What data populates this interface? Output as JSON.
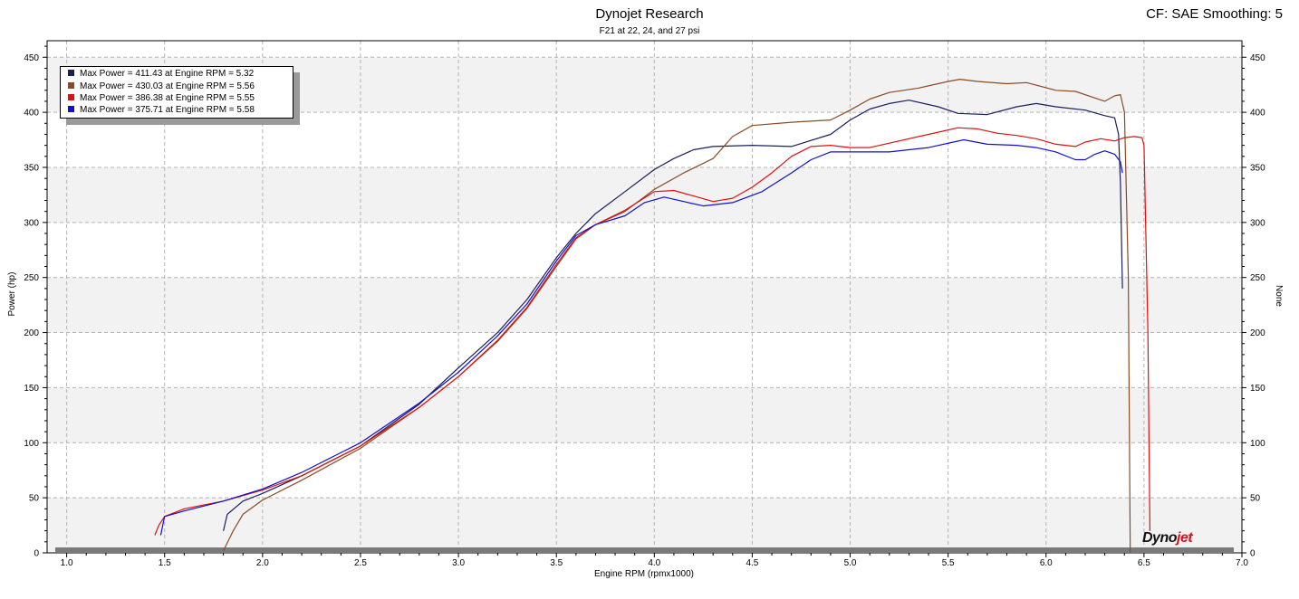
{
  "header": {
    "title": "Dynojet Research",
    "subtitle": "F21 at 22, 24, and 27 psi",
    "corner": "CF: SAE Smoothing: 5"
  },
  "logo": {
    "text": "Dynojet"
  },
  "legend": {
    "items": [
      {
        "label": "Max Power = 411.43 at Engine RPM = 5.32",
        "color": "#1a1f5c"
      },
      {
        "label": "Max Power = 430.03 at Engine RPM = 5.56",
        "color": "#8b4a24"
      },
      {
        "label": "Max Power = 386.38 at Engine RPM = 5.55",
        "color": "#e01010"
      },
      {
        "label": "Max Power = 375.71 at Engine RPM = 5.58",
        "color": "#1010d0"
      }
    ]
  },
  "chart_data": {
    "type": "line",
    "title": "Dynojet Research",
    "subtitle": "F21 at 22, 24, and 27 psi",
    "xlabel": "Engine RPM (rpmx1000)",
    "ylabel": "Power (hp)",
    "y2label": "None",
    "xlim": [
      0.9,
      7.0
    ],
    "ylim": [
      0,
      465
    ],
    "xticks": [
      "1.0",
      "1.5",
      "2.0",
      "2.5",
      "3.0",
      "3.5",
      "4.0",
      "4.5",
      "5.0",
      "5.5",
      "6.0",
      "6.5",
      "7.0"
    ],
    "yticks": [
      "0",
      "50",
      "100",
      "150",
      "200",
      "250",
      "300",
      "350",
      "400",
      "450"
    ],
    "grid": true,
    "legend_position": "top-left",
    "series": [
      {
        "color": "#1a1f5c",
        "points": [
          [
            1.8,
            20
          ],
          [
            1.82,
            35
          ],
          [
            1.9,
            47
          ],
          [
            2.0,
            54
          ],
          [
            2.2,
            70
          ],
          [
            2.5,
            97
          ],
          [
            2.8,
            135
          ],
          [
            3.0,
            168
          ],
          [
            3.2,
            200
          ],
          [
            3.35,
            230
          ],
          [
            3.5,
            268
          ],
          [
            3.6,
            290
          ],
          [
            3.7,
            308
          ],
          [
            3.85,
            328
          ],
          [
            4.0,
            348
          ],
          [
            4.1,
            358
          ],
          [
            4.2,
            366
          ],
          [
            4.3,
            369
          ],
          [
            4.5,
            370
          ],
          [
            4.7,
            369
          ],
          [
            4.9,
            380
          ],
          [
            5.0,
            393
          ],
          [
            5.1,
            403
          ],
          [
            5.2,
            408
          ],
          [
            5.3,
            411
          ],
          [
            5.45,
            405
          ],
          [
            5.55,
            399
          ],
          [
            5.7,
            398
          ],
          [
            5.85,
            405
          ],
          [
            5.95,
            408
          ],
          [
            6.05,
            405
          ],
          [
            6.2,
            402
          ],
          [
            6.3,
            397
          ],
          [
            6.35,
            395
          ],
          [
            6.37,
            380
          ],
          [
            6.38,
            335
          ],
          [
            6.39,
            240
          ]
        ]
      },
      {
        "color": "#8b4a24",
        "points": [
          [
            1.8,
            2
          ],
          [
            1.85,
            20
          ],
          [
            1.9,
            35
          ],
          [
            2.0,
            48
          ],
          [
            2.2,
            66
          ],
          [
            2.5,
            95
          ],
          [
            2.8,
            132
          ],
          [
            3.0,
            160
          ],
          [
            3.2,
            192
          ],
          [
            3.35,
            222
          ],
          [
            3.5,
            260
          ],
          [
            3.6,
            285
          ],
          [
            3.7,
            298
          ],
          [
            3.85,
            310
          ],
          [
            4.0,
            330
          ],
          [
            4.15,
            345
          ],
          [
            4.3,
            358
          ],
          [
            4.4,
            378
          ],
          [
            4.5,
            388
          ],
          [
            4.7,
            391
          ],
          [
            4.9,
            393
          ],
          [
            5.0,
            402
          ],
          [
            5.1,
            412
          ],
          [
            5.2,
            418
          ],
          [
            5.35,
            422
          ],
          [
            5.5,
            428
          ],
          [
            5.56,
            430
          ],
          [
            5.65,
            428
          ],
          [
            5.8,
            426
          ],
          [
            5.9,
            427
          ],
          [
            6.05,
            420
          ],
          [
            6.15,
            419
          ],
          [
            6.25,
            413
          ],
          [
            6.3,
            410
          ],
          [
            6.35,
            415
          ],
          [
            6.38,
            416
          ],
          [
            6.4,
            400
          ],
          [
            6.42,
            250
          ],
          [
            6.43,
            0
          ]
        ]
      },
      {
        "color": "#e01010",
        "points": [
          [
            1.45,
            16
          ],
          [
            1.47,
            25
          ],
          [
            1.5,
            33
          ],
          [
            1.6,
            40
          ],
          [
            1.8,
            47
          ],
          [
            2.0,
            57
          ],
          [
            2.2,
            70
          ],
          [
            2.5,
            97
          ],
          [
            2.8,
            132
          ],
          [
            3.0,
            160
          ],
          [
            3.2,
            193
          ],
          [
            3.35,
            223
          ],
          [
            3.5,
            262
          ],
          [
            3.6,
            286
          ],
          [
            3.7,
            298
          ],
          [
            3.85,
            311
          ],
          [
            4.0,
            328
          ],
          [
            4.1,
            329
          ],
          [
            4.2,
            324
          ],
          [
            4.3,
            319
          ],
          [
            4.4,
            322
          ],
          [
            4.5,
            332
          ],
          [
            4.6,
            345
          ],
          [
            4.7,
            360
          ],
          [
            4.8,
            369
          ],
          [
            4.9,
            370
          ],
          [
            5.0,
            368
          ],
          [
            5.1,
            368
          ],
          [
            5.2,
            372
          ],
          [
            5.4,
            380
          ],
          [
            5.55,
            386
          ],
          [
            5.65,
            385
          ],
          [
            5.75,
            381
          ],
          [
            5.85,
            379
          ],
          [
            5.95,
            376
          ],
          [
            6.05,
            371
          ],
          [
            6.15,
            369
          ],
          [
            6.2,
            373
          ],
          [
            6.28,
            376
          ],
          [
            6.35,
            374
          ],
          [
            6.4,
            377
          ],
          [
            6.45,
            378
          ],
          [
            6.49,
            377
          ],
          [
            6.5,
            370
          ],
          [
            6.52,
            200
          ],
          [
            6.53,
            20
          ]
        ]
      },
      {
        "color": "#1010d0",
        "points": [
          [
            1.48,
            16
          ],
          [
            1.5,
            33
          ],
          [
            1.6,
            38
          ],
          [
            1.8,
            47
          ],
          [
            2.0,
            58
          ],
          [
            2.2,
            73
          ],
          [
            2.5,
            100
          ],
          [
            2.8,
            136
          ],
          [
            3.0,
            164
          ],
          [
            3.2,
            197
          ],
          [
            3.35,
            226
          ],
          [
            3.5,
            265
          ],
          [
            3.6,
            288
          ],
          [
            3.7,
            298
          ],
          [
            3.85,
            306
          ],
          [
            3.95,
            318
          ],
          [
            4.05,
            323
          ],
          [
            4.15,
            319
          ],
          [
            4.25,
            315
          ],
          [
            4.4,
            318
          ],
          [
            4.55,
            328
          ],
          [
            4.7,
            345
          ],
          [
            4.8,
            357
          ],
          [
            4.9,
            364
          ],
          [
            5.0,
            364
          ],
          [
            5.2,
            364
          ],
          [
            5.4,
            368
          ],
          [
            5.58,
            375
          ],
          [
            5.7,
            371
          ],
          [
            5.85,
            370
          ],
          [
            5.95,
            368
          ],
          [
            6.05,
            364
          ],
          [
            6.15,
            357
          ],
          [
            6.2,
            357
          ],
          [
            6.25,
            362
          ],
          [
            6.3,
            365
          ],
          [
            6.35,
            362
          ],
          [
            6.38,
            355
          ],
          [
            6.39,
            345
          ]
        ]
      }
    ]
  }
}
